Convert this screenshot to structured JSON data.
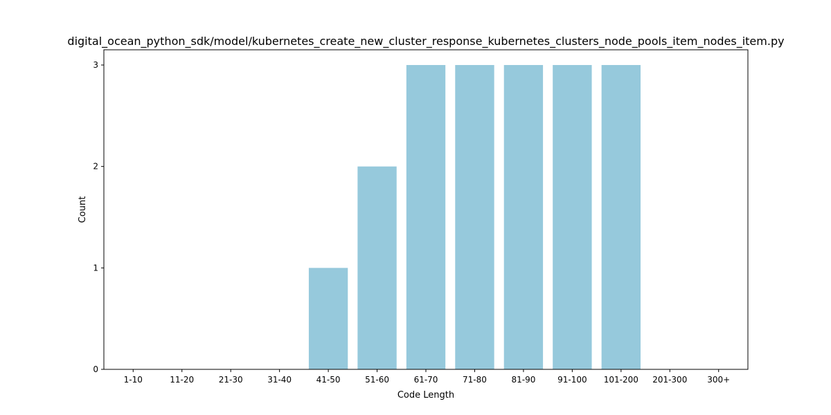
{
  "chart_data": {
    "type": "bar",
    "title": "digital_ocean_python_sdk/model/kubernetes_create_new_cluster_response_kubernetes_clusters_node_pools_item_nodes_item.py",
    "xlabel": "Code Length",
    "ylabel": "Count",
    "categories": [
      "1-10",
      "11-20",
      "21-30",
      "31-40",
      "41-50",
      "51-60",
      "61-70",
      "71-80",
      "81-90",
      "91-100",
      "101-200",
      "201-300",
      "300+"
    ],
    "values": [
      0,
      0,
      0,
      0,
      1,
      2,
      3,
      3,
      3,
      3,
      3,
      0,
      0
    ],
    "yticks": [
      "0",
      "1",
      "2",
      "3"
    ],
    "ylim": [
      0,
      3.15
    ],
    "bar_color": "#96c9dc",
    "grid": false,
    "legend": "none"
  }
}
